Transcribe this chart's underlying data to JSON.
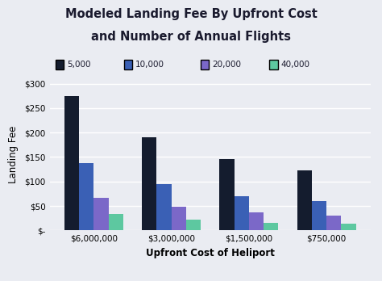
{
  "title_line1": "Modeled Landing Fee By Upfront Cost",
  "title_line2": "and Number of Annual Flights",
  "xlabel": "Upfront Cost of Heliport",
  "ylabel": "Landing Fee",
  "categories": [
    "$6,000,000",
    "$3,000,000",
    "$1,500,000",
    "$750,000"
  ],
  "series": [
    {
      "label": "5,000",
      "color": "#141c2e",
      "values": [
        275,
        190,
        145,
        122
      ]
    },
    {
      "label": "10,000",
      "color": "#3a60b5",
      "values": [
        138,
        95,
        70,
        60
      ]
    },
    {
      "label": "20,000",
      "color": "#7b68c8",
      "values": [
        67,
        48,
        37,
        30
      ]
    },
    {
      "label": "40,000",
      "color": "#5dc8a0",
      "values": [
        34,
        22,
        16,
        14
      ]
    }
  ],
  "ylim": [
    0,
    310
  ],
  "yticks": [
    0,
    50,
    100,
    150,
    200,
    250,
    300
  ],
  "ytick_labels": [
    "$-",
    "$50",
    "$100",
    "$150",
    "$200",
    "$250",
    "$300"
  ],
  "background_color": "#eaecf2",
  "grid_color": "#ffffff",
  "title_fontsize": 10.5,
  "bar_width": 0.19
}
